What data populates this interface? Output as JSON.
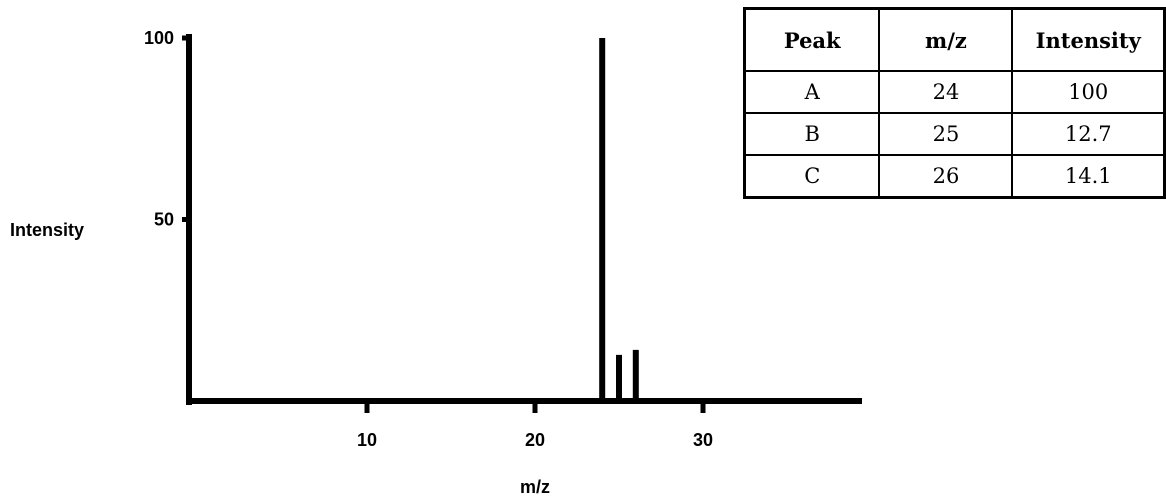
{
  "chart_data": {
    "type": "bar",
    "title": "",
    "xlabel": "m/z",
    "ylabel": "Intensity",
    "xlim": [
      0,
      40
    ],
    "ylim": [
      0,
      100
    ],
    "x_ticks": [
      10,
      20,
      30
    ],
    "y_ticks": [
      50,
      100
    ],
    "grid": false,
    "series": [
      {
        "x": [
          24,
          25,
          26
        ],
        "values": [
          100,
          12.7,
          14.1
        ]
      }
    ]
  },
  "table": {
    "headers": [
      "Peak",
      "m/z",
      "Intensity"
    ],
    "rows": [
      [
        "A",
        "24",
        "100"
      ],
      [
        "B",
        "25",
        "12.7"
      ],
      [
        "C",
        "26",
        "14.1"
      ]
    ]
  },
  "colors": {
    "ink": "#000000",
    "background": "#ffffff"
  }
}
